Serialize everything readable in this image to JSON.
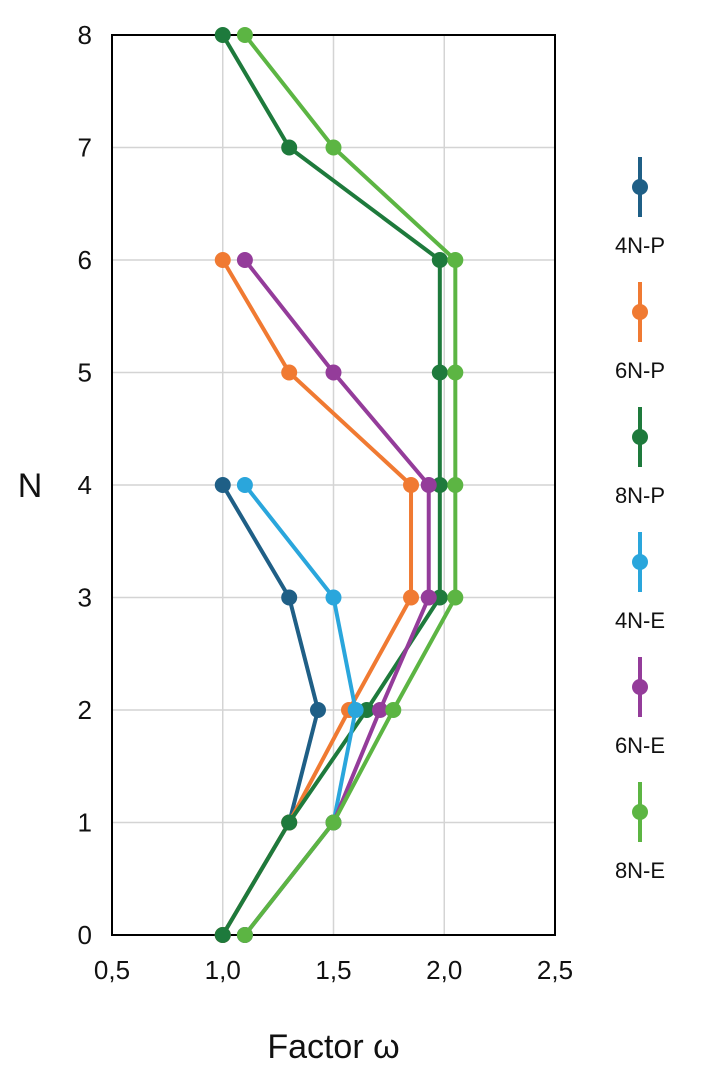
{
  "chart_data": {
    "type": "line",
    "xlabel": "Factor ω",
    "ylabel": "N",
    "xlim": [
      0.5,
      2.5
    ],
    "ylim": [
      0,
      8
    ],
    "x_ticks": [
      "0,5",
      "1,0",
      "1,5",
      "2,0",
      "2,5"
    ],
    "y_ticks": [
      "0",
      "1",
      "2",
      "3",
      "4",
      "5",
      "6",
      "7",
      "8"
    ],
    "grid": true,
    "legend_position": "right",
    "series": [
      {
        "name": "4N-P",
        "color": "#1f5f86",
        "points": [
          [
            1.0,
            0
          ],
          [
            1.3,
            1
          ],
          [
            1.43,
            2
          ],
          [
            1.3,
            3
          ],
          [
            1.0,
            4
          ]
        ]
      },
      {
        "name": "6N-P",
        "color": "#f07a32",
        "points": [
          [
            1.0,
            0
          ],
          [
            1.3,
            1
          ],
          [
            1.57,
            2
          ],
          [
            1.85,
            3
          ],
          [
            1.85,
            4
          ],
          [
            1.3,
            5
          ],
          [
            1.0,
            6
          ]
        ]
      },
      {
        "name": "8N-P",
        "color": "#1e7a3c",
        "points": [
          [
            1.0,
            0
          ],
          [
            1.3,
            1
          ],
          [
            1.65,
            2
          ],
          [
            1.98,
            3
          ],
          [
            1.98,
            4
          ],
          [
            1.98,
            5
          ],
          [
            1.98,
            6
          ],
          [
            1.3,
            7
          ],
          [
            1.0,
            8
          ]
        ]
      },
      {
        "name": "4N-E",
        "color": "#2aa6dc",
        "points": [
          [
            1.1,
            0
          ],
          [
            1.5,
            1
          ],
          [
            1.6,
            2
          ],
          [
            1.5,
            3
          ],
          [
            1.1,
            4
          ]
        ]
      },
      {
        "name": "6N-E",
        "color": "#943c9a",
        "points": [
          [
            1.1,
            0
          ],
          [
            1.5,
            1
          ],
          [
            1.71,
            2
          ],
          [
            1.93,
            3
          ],
          [
            1.93,
            4
          ],
          [
            1.5,
            5
          ],
          [
            1.1,
            6
          ]
        ]
      },
      {
        "name": "8N-E",
        "color": "#5cb543",
        "points": [
          [
            1.1,
            0
          ],
          [
            1.5,
            1
          ],
          [
            1.77,
            2
          ],
          [
            2.05,
            3
          ],
          [
            2.05,
            4
          ],
          [
            2.05,
            5
          ],
          [
            2.05,
            6
          ],
          [
            1.5,
            7
          ],
          [
            1.1,
            8
          ]
        ]
      }
    ]
  }
}
